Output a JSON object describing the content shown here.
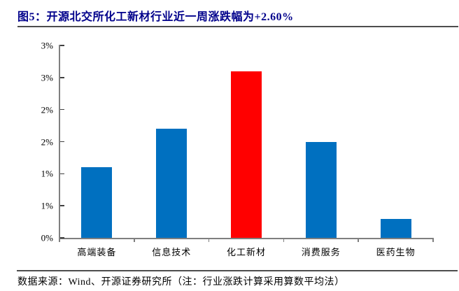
{
  "figure": {
    "title": "图5：开源北交所化工新材行业近一周涨跌幅为+2.60%",
    "source_note": "数据来源：Wind、开源证券研究所（注：行业涨跌计算采用算数平均法）"
  },
  "colors": {
    "title_text": "#00008B",
    "bar_blue": "#0070C0",
    "bar_highlight_red": "#FF0000",
    "axis_gray": "#7F7F7F",
    "divider_gray": "#4D4D4D"
  },
  "chart_data": {
    "type": "bar",
    "title": "开源北交所化工新材行业近一周涨跌幅为+2.60%",
    "categories": [
      "高端装备",
      "信息技术",
      "化工新材",
      "消费服务",
      "医药生物"
    ],
    "values": [
      1.1,
      1.7,
      2.6,
      1.5,
      0.3
    ],
    "unit": "%",
    "bar_colors": [
      "#0070C0",
      "#0070C0",
      "#FF0000",
      "#0070C0",
      "#0070C0"
    ],
    "highlight_category": "化工新材",
    "xlabel": "",
    "ylabel": "",
    "ylim": [
      0,
      3
    ],
    "y_tick_step": 0.5,
    "y_ticks": [
      {
        "value": 0.0,
        "label": "0%"
      },
      {
        "value": 0.5,
        "label": "1%"
      },
      {
        "value": 1.0,
        "label": "1%"
      },
      {
        "value": 1.5,
        "label": "2%"
      },
      {
        "value": 2.0,
        "label": "2%"
      },
      {
        "value": 2.5,
        "label": "3%"
      },
      {
        "value": 3.0,
        "label": "3%"
      }
    ],
    "grid": false,
    "legend": "none"
  }
}
